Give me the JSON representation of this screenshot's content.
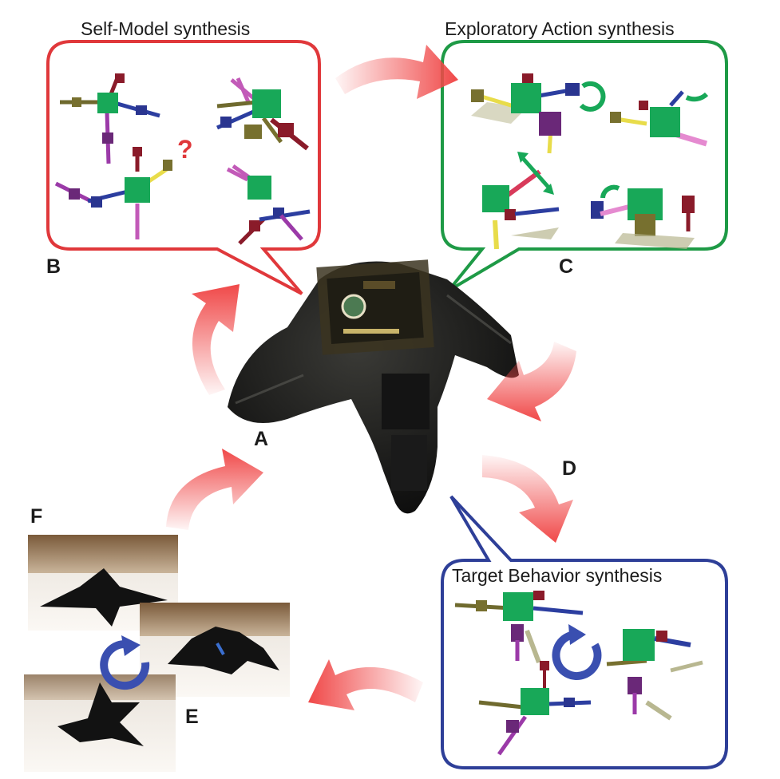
{
  "panels": {
    "self_model": {
      "letter": "B",
      "title": "Self-Model synthesis",
      "question_mark": "?",
      "color": "#e0383b"
    },
    "exploratory": {
      "letter": "C",
      "title": "Exploratory Action synthesis",
      "color": "#1e9a46"
    },
    "target": {
      "letter": "D",
      "title": "Target Behavior synthesis",
      "color": "#2e3f98"
    },
    "robot": {
      "letter": "A"
    },
    "photo_top": {
      "letter": "F"
    },
    "photo_bottom": {
      "letter": "E"
    }
  },
  "colors": {
    "arrow": "#f04848",
    "block": "#18a858",
    "cycle": "#3a4fb0"
  },
  "icons": [
    "cycle-arrow-icon",
    "flow-arrow-icon",
    "question-icon"
  ]
}
